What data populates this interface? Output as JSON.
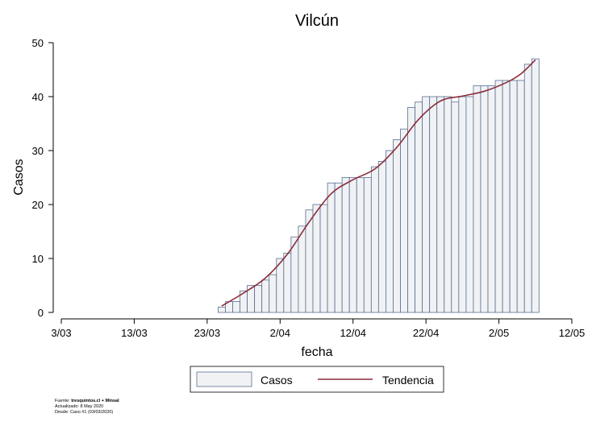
{
  "chart_data": {
    "type": "bar",
    "title": "Vilcún",
    "xlabel": "fecha",
    "ylabel": "Casos",
    "xlim": [
      "2020-03-03",
      "2020-05-12"
    ],
    "ylim": [
      0,
      50
    ],
    "x_ticks": [
      "3/03",
      "13/03",
      "23/03",
      "2/04",
      "12/04",
      "22/04",
      "2/05",
      "12/05"
    ],
    "y_ticks": [
      0,
      10,
      20,
      30,
      40,
      50
    ],
    "grid": false,
    "legend_position": "bottom",
    "series": [
      {
        "name": "Casos",
        "type": "bar",
        "color": "#f0f2f4",
        "edge_color": "#5a6e94",
        "x": [
          "2020-03-25",
          "2020-03-26",
          "2020-03-27",
          "2020-03-28",
          "2020-03-29",
          "2020-03-30",
          "2020-03-31",
          "2020-04-01",
          "2020-04-02",
          "2020-04-03",
          "2020-04-04",
          "2020-04-05",
          "2020-04-06",
          "2020-04-07",
          "2020-04-08",
          "2020-04-09",
          "2020-04-10",
          "2020-04-11",
          "2020-04-12",
          "2020-04-13",
          "2020-04-14",
          "2020-04-15",
          "2020-04-16",
          "2020-04-17",
          "2020-04-18",
          "2020-04-19",
          "2020-04-20",
          "2020-04-21",
          "2020-04-22",
          "2020-04-23",
          "2020-04-24",
          "2020-04-25",
          "2020-04-26",
          "2020-04-27",
          "2020-04-28",
          "2020-04-29",
          "2020-04-30",
          "2020-05-01",
          "2020-05-02",
          "2020-05-03",
          "2020-05-04",
          "2020-05-05",
          "2020-05-06",
          "2020-05-07"
        ],
        "values": [
          1,
          2,
          2,
          4,
          5,
          5,
          6,
          7,
          10,
          11,
          14,
          16,
          19,
          20,
          20,
          24,
          24,
          25,
          25,
          25,
          25,
          27,
          28,
          30,
          32,
          34,
          38,
          39,
          40,
          40,
          40,
          40,
          39,
          40,
          40,
          42,
          42,
          42,
          43,
          43,
          43,
          43,
          46,
          47
        ]
      },
      {
        "name": "Tendencia",
        "type": "line",
        "color": "#8b2c3a",
        "x": [
          "2020-03-25",
          "2020-03-28",
          "2020-03-31",
          "2020-04-03",
          "2020-04-06",
          "2020-04-09",
          "2020-04-12",
          "2020-04-15",
          "2020-04-18",
          "2020-04-21",
          "2020-04-24",
          "2020-04-27",
          "2020-04-30",
          "2020-05-03",
          "2020-05-05",
          "2020-05-07"
        ],
        "values": [
          1.2,
          3.6,
          6.4,
          10.8,
          16.8,
          22.0,
          24.6,
          26.6,
          30.6,
          35.8,
          39.2,
          40.1,
          41.0,
          42.6,
          44.2,
          46.8
        ]
      }
    ]
  },
  "footer": {
    "source_prefix": "Fuente: ",
    "source_bold": "tresquintos.cl + Minsal",
    "updated": "Actualizado: 8 May 2020",
    "since": "Desde: Caso #1  (03/03/2020)"
  }
}
